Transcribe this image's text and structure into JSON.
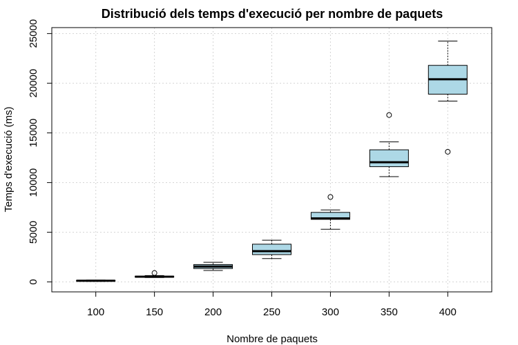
{
  "chart_data": {
    "type": "box",
    "title": "Distribució dels temps d'execució per nombre de paquets",
    "xlabel": "Nombre de paquets",
    "ylabel": "Temps d'execució (ms)",
    "categories": [
      "100",
      "150",
      "200",
      "250",
      "300",
      "350",
      "400"
    ],
    "ylim": [
      -1000,
      25600
    ],
    "yticks": [
      0,
      5000,
      10000,
      15000,
      20000,
      25000
    ],
    "ytick_labels": [
      "0",
      "5000",
      "10000",
      "15000",
      "20000",
      "25000"
    ],
    "grid": true,
    "box_color": "#add8e6",
    "boxes": [
      {
        "min": 60,
        "q1": 90,
        "median": 120,
        "q3": 160,
        "max": 190,
        "outliers": []
      },
      {
        "min": 440,
        "q1": 480,
        "median": 530,
        "q3": 580,
        "max": 640,
        "outliers": [
          900
        ]
      },
      {
        "min": 1150,
        "q1": 1350,
        "median": 1550,
        "q3": 1750,
        "max": 1980,
        "outliers": []
      },
      {
        "min": 2350,
        "q1": 2750,
        "median": 3100,
        "q3": 3800,
        "max": 4200,
        "outliers": []
      },
      {
        "min": 5300,
        "q1": 6300,
        "median": 6400,
        "q3": 7000,
        "max": 7250,
        "outliers": [
          8550
        ]
      },
      {
        "min": 10600,
        "q1": 11600,
        "median": 12050,
        "q3": 13300,
        "max": 14100,
        "outliers": [
          16800
        ]
      },
      {
        "min": 18200,
        "q1": 18900,
        "median": 20400,
        "q3": 21800,
        "max": 24250,
        "outliers": [
          13100
        ]
      }
    ]
  }
}
